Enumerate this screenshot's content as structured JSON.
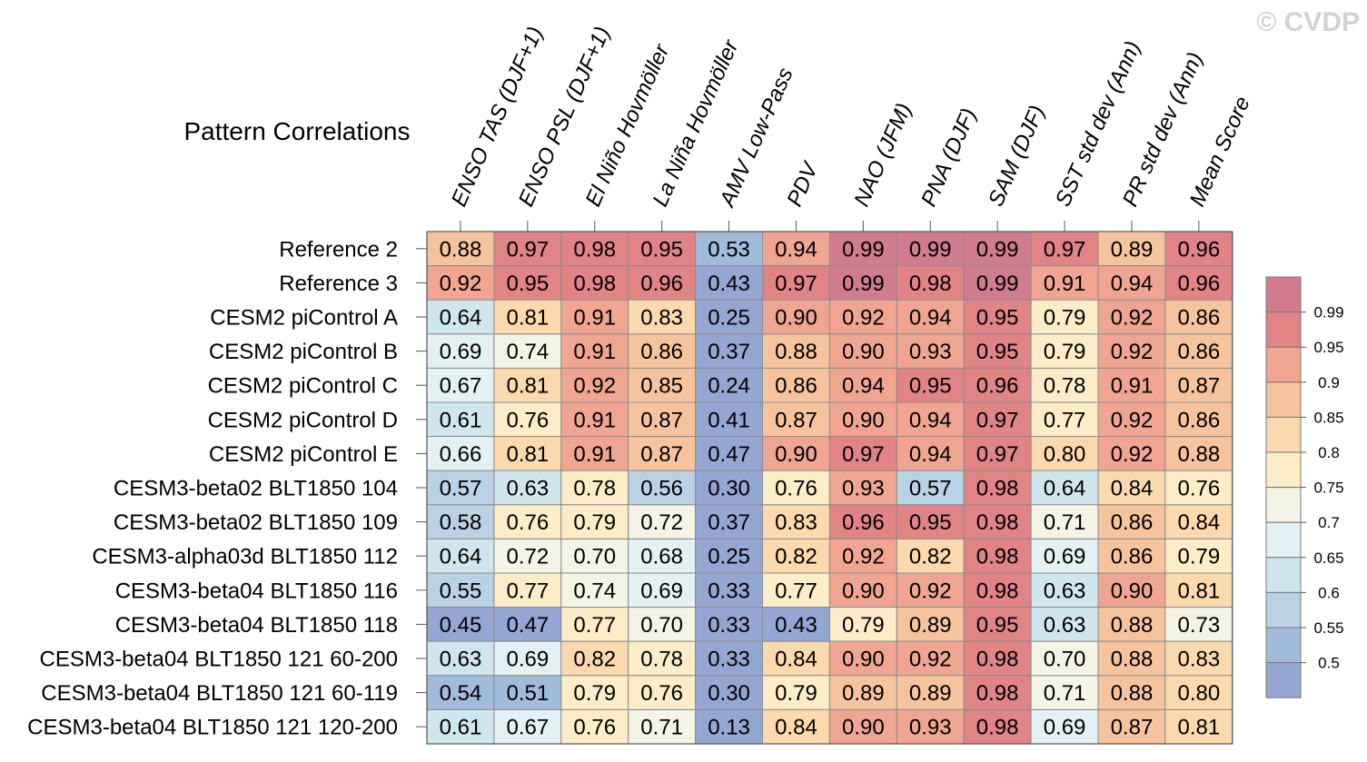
{
  "watermark": "© CVDP",
  "chart_data": {
    "type": "heatmap",
    "title": "Pattern Correlations",
    "columns": [
      "ENSO TAS (DJF+1)",
      "ENSO PSL (DJF+1)",
      "El Niño Hovmöller",
      "La Niña Hovmöller",
      "AMV Low-Pass",
      "PDV",
      "NAO (JFM)",
      "PNA (DJF)",
      "SAM (DJF)",
      "SST std dev (Ann)",
      "PR std dev (Ann)",
      "Mean Score"
    ],
    "rows": [
      "Reference 2",
      "Reference 3",
      "CESM2 piControl A",
      "CESM2 piControl B",
      "CESM2 piControl C",
      "CESM2 piControl D",
      "CESM2 piControl E",
      "CESM3-beta02 BLT1850 104",
      "CESM3-beta02 BLT1850 109",
      "CESM3-alpha03d BLT1850 112",
      "CESM3-beta04 BLT1850 116",
      "CESM3-beta04 BLT1850 118",
      "CESM3-beta04 BLT1850 121 60-200",
      "CESM3-beta04 BLT1850 121 60-119",
      "CESM3-beta04 BLT1850 121 120-200"
    ],
    "values": [
      [
        "0.88",
        "0.97",
        "0.98",
        "0.95",
        "0.53",
        "0.94",
        "0.99",
        "0.99",
        "0.99",
        "0.97",
        "0.89",
        "0.96"
      ],
      [
        "0.92",
        "0.95",
        "0.98",
        "0.96",
        "0.43",
        "0.97",
        "0.99",
        "0.98",
        "0.99",
        "0.91",
        "0.94",
        "0.96"
      ],
      [
        "0.64",
        "0.81",
        "0.91",
        "0.83",
        "0.25",
        "0.90",
        "0.92",
        "0.94",
        "0.95",
        "0.79",
        "0.92",
        "0.86"
      ],
      [
        "0.69",
        "0.74",
        "0.91",
        "0.86",
        "0.37",
        "0.88",
        "0.90",
        "0.93",
        "0.95",
        "0.79",
        "0.92",
        "0.86"
      ],
      [
        "0.67",
        "0.81",
        "0.92",
        "0.85",
        "0.24",
        "0.86",
        "0.94",
        "0.95",
        "0.96",
        "0.78",
        "0.91",
        "0.87"
      ],
      [
        "0.61",
        "0.76",
        "0.91",
        "0.87",
        "0.41",
        "0.87",
        "0.90",
        "0.94",
        "0.97",
        "0.77",
        "0.92",
        "0.86"
      ],
      [
        "0.66",
        "0.81",
        "0.91",
        "0.87",
        "0.47",
        "0.90",
        "0.97",
        "0.94",
        "0.97",
        "0.80",
        "0.92",
        "0.88"
      ],
      [
        "0.57",
        "0.63",
        "0.78",
        "0.56",
        "0.30",
        "0.76",
        "0.93",
        "0.57",
        "0.98",
        "0.64",
        "0.84",
        "0.76"
      ],
      [
        "0.58",
        "0.76",
        "0.79",
        "0.72",
        "0.37",
        "0.83",
        "0.96",
        "0.95",
        "0.98",
        "0.71",
        "0.86",
        "0.84"
      ],
      [
        "0.64",
        "0.72",
        "0.70",
        "0.68",
        "0.25",
        "0.82",
        "0.92",
        "0.82",
        "0.98",
        "0.69",
        "0.86",
        "0.79"
      ],
      [
        "0.55",
        "0.77",
        "0.74",
        "0.69",
        "0.33",
        "0.77",
        "0.90",
        "0.92",
        "0.98",
        "0.63",
        "0.90",
        "0.81"
      ],
      [
        "0.45",
        "0.47",
        "0.77",
        "0.70",
        "0.33",
        "0.43",
        "0.79",
        "0.89",
        "0.95",
        "0.63",
        "0.88",
        "0.73"
      ],
      [
        "0.63",
        "0.69",
        "0.82",
        "0.78",
        "0.33",
        "0.84",
        "0.90",
        "0.92",
        "0.98",
        "0.70",
        "0.88",
        "0.83"
      ],
      [
        "0.54",
        "0.51",
        "0.79",
        "0.76",
        "0.30",
        "0.79",
        "0.89",
        "0.89",
        "0.98",
        "0.71",
        "0.88",
        "0.80"
      ],
      [
        "0.61",
        "0.67",
        "0.76",
        "0.71",
        "0.13",
        "0.84",
        "0.90",
        "0.93",
        "0.98",
        "0.69",
        "0.87",
        "0.81"
      ]
    ],
    "colorbar": {
      "labels": [
        "0.99",
        "0.95",
        "0.9",
        "0.85",
        "0.8",
        "0.75",
        "0.7",
        "0.65",
        "0.6",
        "0.55",
        "0.5"
      ],
      "bins": [
        {
          "min": 0.99,
          "max": 1.0,
          "color": "#d07c8e"
        },
        {
          "min": 0.95,
          "max": 0.99,
          "color": "#e08486"
        },
        {
          "min": 0.9,
          "max": 0.95,
          "color": "#f0a593"
        },
        {
          "min": 0.85,
          "max": 0.9,
          "color": "#f6c39f"
        },
        {
          "min": 0.8,
          "max": 0.85,
          "color": "#fbd9ae"
        },
        {
          "min": 0.75,
          "max": 0.8,
          "color": "#fcecc8"
        },
        {
          "min": 0.7,
          "max": 0.75,
          "color": "#f3f3e6"
        },
        {
          "min": 0.65,
          "max": 0.7,
          "color": "#e4f1f4"
        },
        {
          "min": 0.6,
          "max": 0.65,
          "color": "#d0e6ee"
        },
        {
          "min": 0.55,
          "max": 0.6,
          "color": "#b9d3e4"
        },
        {
          "min": 0.5,
          "max": 0.55,
          "color": "#a1bcda"
        },
        {
          "min": 0.0,
          "max": 0.5,
          "color": "#94a6d2"
        }
      ]
    }
  }
}
